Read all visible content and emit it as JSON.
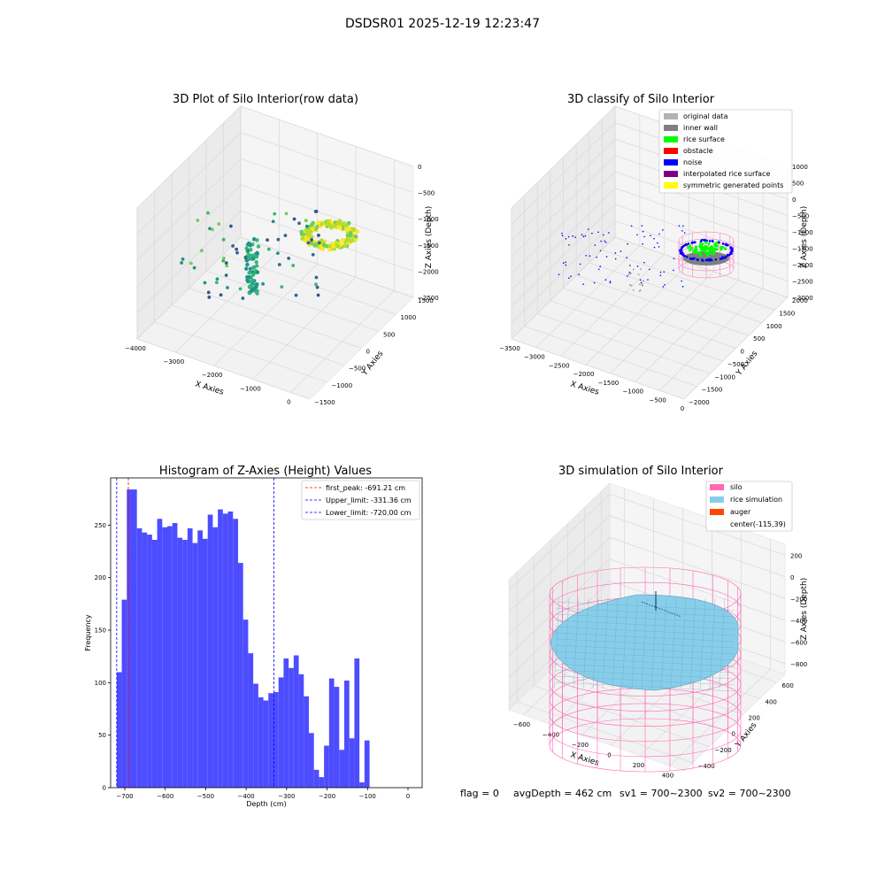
{
  "figure": {
    "suptitle": "DSDSR01 2025-12-19 12:23:47",
    "footer": {
      "flag": "flag = 0",
      "avg_depth": "avgDepth = 462 cm",
      "sv1": "sv1 = 700~2300",
      "sv2": "sv2 = 700~2300"
    }
  },
  "colors": {
    "original": "#b3b3b3",
    "inner_wall": "#808080",
    "rice_surface": "#00ff00",
    "obstacle": "#ff0000",
    "noise": "#0000ff",
    "interp": "#800080",
    "symmetric": "#ffff00",
    "hist_bar": "#4d4dff",
    "peak_line": "#ff0000",
    "limit_line": "#0000ff",
    "silo": "#ff69b4",
    "rice_sim": "#87ceeb",
    "auger": "#ff4500",
    "pane": "#f2f2f2",
    "grid": "#d9d9d9"
  },
  "chart_data": [
    {
      "type": "scatter",
      "title": "3D Plot of Silo Interior(row data)",
      "xlabel": "X Axies",
      "ylabel": "Y Axies",
      "zlabel": "Z Axies (Depth)",
      "xlim": [
        -4000,
        500
      ],
      "ylim": [
        -1500,
        1500
      ],
      "zlim": [
        -2500,
        0
      ],
      "xticks": [
        -4000,
        -3000,
        -2000,
        -1000,
        0
      ],
      "yticks": [
        -1500,
        -1000,
        -500,
        0,
        500,
        1000,
        1500
      ],
      "zticks": [
        0,
        -500,
        -1000,
        -1500,
        -2000,
        -2500
      ],
      "xtick_labels": [
        "−4000",
        "−3000",
        "−2000",
        "−1000",
        "0"
      ],
      "ytick_labels": [
        "−1500",
        "−1000",
        "−500",
        "0",
        "500",
        "1000",
        "1500"
      ],
      "ztick_labels": [
        "0",
        "−500",
        "−1000",
        "−1500",
        "−2000",
        "−2500"
      ],
      "colormap": "viridis",
      "grid": true
    },
    {
      "type": "scatter",
      "title": "3D classify of Silo Interior",
      "xlabel": "X Axies",
      "ylabel": "Y Axies",
      "zlabel": "Z Axies (Depth)",
      "xlim": [
        -3500,
        0
      ],
      "ylim": [
        -2000,
        2000
      ],
      "zlim": [
        -3000,
        1000
      ],
      "xticks": [
        -3500,
        -3000,
        -2500,
        -2000,
        -1500,
        -1000,
        -500,
        0
      ],
      "yticks": [
        -2000,
        -1500,
        -1000,
        -500,
        0,
        500,
        1000,
        1500,
        2000
      ],
      "zticks": [
        1000,
        500,
        0,
        -500,
        -1000,
        -1500,
        -2000,
        -2500,
        -3000
      ],
      "xtick_labels": [
        "−3500",
        "−3000",
        "−2500",
        "−2000",
        "−1500",
        "−1000",
        "−500",
        "0"
      ],
      "ytick_labels": [
        "−2000",
        "−1500",
        "−1000",
        "−500",
        "0",
        "500",
        "1000",
        "1500",
        "2000"
      ],
      "ztick_labels": [
        "1000",
        "500",
        "0",
        "−500",
        "−1000",
        "−1500",
        "−2000",
        "−2500",
        "−3000"
      ],
      "legend": [
        "original data",
        "inner wall",
        "rice surface",
        "obstacle",
        "noise",
        "interpolated rice surface",
        "symmetric generated points"
      ],
      "legend_placement": "top-right",
      "grid": true
    },
    {
      "type": "bar",
      "title": "Histogram of Z-Axies (Height) Values",
      "xlabel": "Depth (cm)",
      "ylabel": "Frequency",
      "xlim": [
        -735,
        35
      ],
      "ylim": [
        0,
        295
      ],
      "xticks": [
        -700,
        -600,
        -500,
        -400,
        -300,
        -200,
        -100,
        0
      ],
      "xtick_labels": [
        "−700",
        "−600",
        "−500",
        "−400",
        "−300",
        "−200",
        "−100",
        "0"
      ],
      "yticks": [
        0,
        50,
        100,
        150,
        200,
        250
      ],
      "bin_start": -720,
      "bin_width": 12.5,
      "values": [
        110,
        179,
        284,
        284,
        247,
        243,
        241,
        236,
        256,
        248,
        249,
        252,
        238,
        236,
        247,
        233,
        245,
        237,
        260,
        248,
        265,
        261,
        263,
        256,
        214,
        160,
        128,
        99,
        86,
        83,
        90,
        91,
        105,
        123,
        114,
        126,
        108,
        87,
        52,
        17,
        10,
        40,
        104,
        96,
        36,
        102,
        47,
        123,
        5,
        45
      ],
      "vlines": [
        {
          "label": "first_peak: -691.21 cm",
          "x": -691.21,
          "color": "red"
        },
        {
          "label": "Upper_limit: -331.36 cm",
          "x": -331.36,
          "color": "blue"
        },
        {
          "label": "Lower_limit: -720.00 cm",
          "x": -720.0,
          "color": "blue"
        }
      ],
      "legend_placement": "top-right"
    },
    {
      "type": "surface",
      "title": "3D simulation of Silo Interior",
      "xlabel": "X Axies",
      "ylabel": "Y Axies",
      "zlabel": "Z Axies (Depth)",
      "xlim": [
        -700,
        500
      ],
      "ylim": [
        -500,
        700
      ],
      "zlim": [
        -900,
        300
      ],
      "xticks": [
        -600,
        -400,
        -200,
        0,
        200,
        400
      ],
      "yticks": [
        -400,
        -200,
        0,
        200,
        400,
        600
      ],
      "zticks": [
        200,
        0,
        -200,
        -400,
        -600,
        -800
      ],
      "xtick_labels": [
        "−600",
        "−400",
        "−200",
        "0",
        "200",
        "400"
      ],
      "ytick_labels": [
        "−400",
        "−200",
        "0",
        "200",
        "400",
        "600"
      ],
      "ztick_labels": [
        "200",
        "0",
        "−200",
        "−400",
        "−600",
        "−800"
      ],
      "legend": [
        "silo",
        "rice simulation",
        "auger",
        "center(-115,39)"
      ],
      "legend_placement": "top-right",
      "grid": true
    }
  ]
}
